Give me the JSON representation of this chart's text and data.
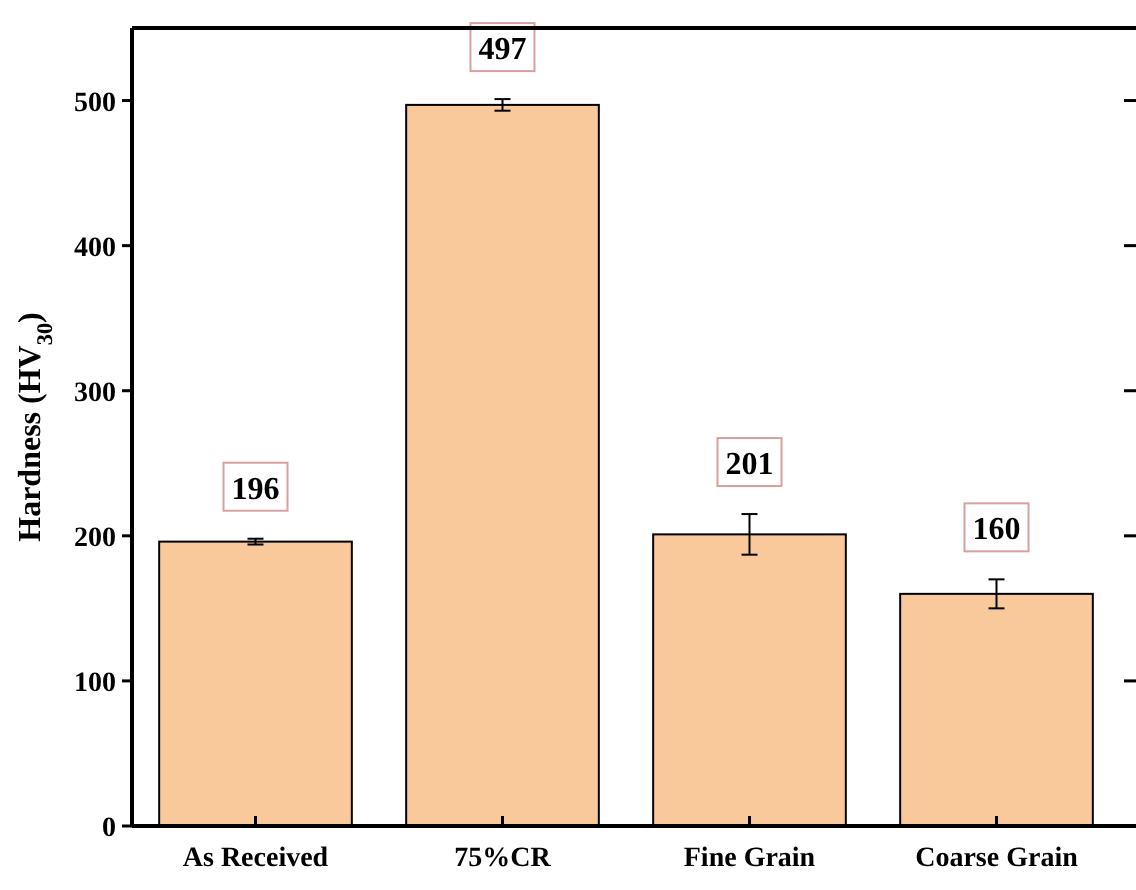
{
  "chart_data": {
    "type": "bar",
    "ylabel": "Hardness (HV$_{30}$)",
    "categories": [
      "As Received",
      "75%CR",
      "Fine Grain",
      "Coarse Grain"
    ],
    "values": [
      196,
      497,
      201,
      160
    ],
    "errors": [
      2,
      4,
      14,
      10
    ],
    "color": "#f9c89b",
    "ylim": [
      0,
      550
    ],
    "yticks": [
      0,
      100,
      200,
      300,
      400,
      500
    ],
    "data_labels": true,
    "grid": false
  }
}
